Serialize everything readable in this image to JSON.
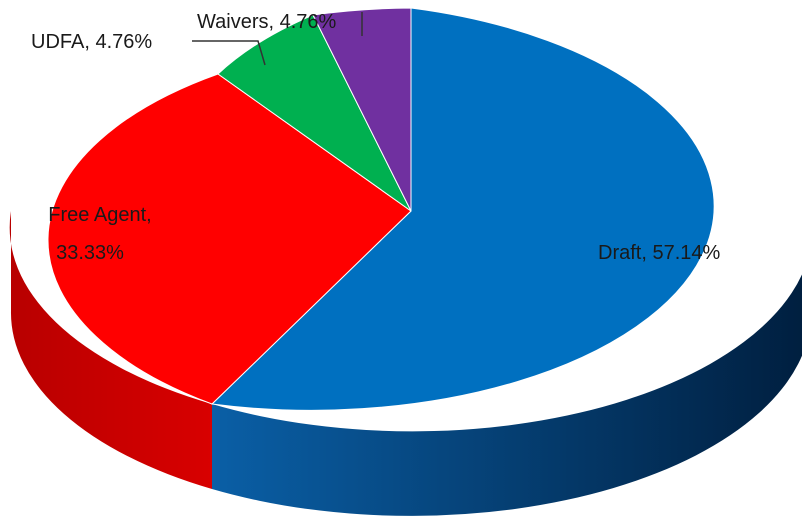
{
  "chart_data": {
    "type": "pie",
    "style": "3d",
    "slices": [
      {
        "label": "Draft",
        "percent": 57.14,
        "display": "Draft, 57.14%",
        "color": "#0070C0"
      },
      {
        "label": "Free Agent",
        "percent": 33.33,
        "display_lines": [
          "Free Agent,",
          "33.33%"
        ],
        "color": "#FF0000"
      },
      {
        "label": "UDFA",
        "percent": 4.76,
        "display": "UDFA, 4.76%",
        "color": "#00B050"
      },
      {
        "label": "Waivers",
        "percent": 4.76,
        "display": "Waivers, 4.76%",
        "color": "#7030A0"
      }
    ]
  }
}
